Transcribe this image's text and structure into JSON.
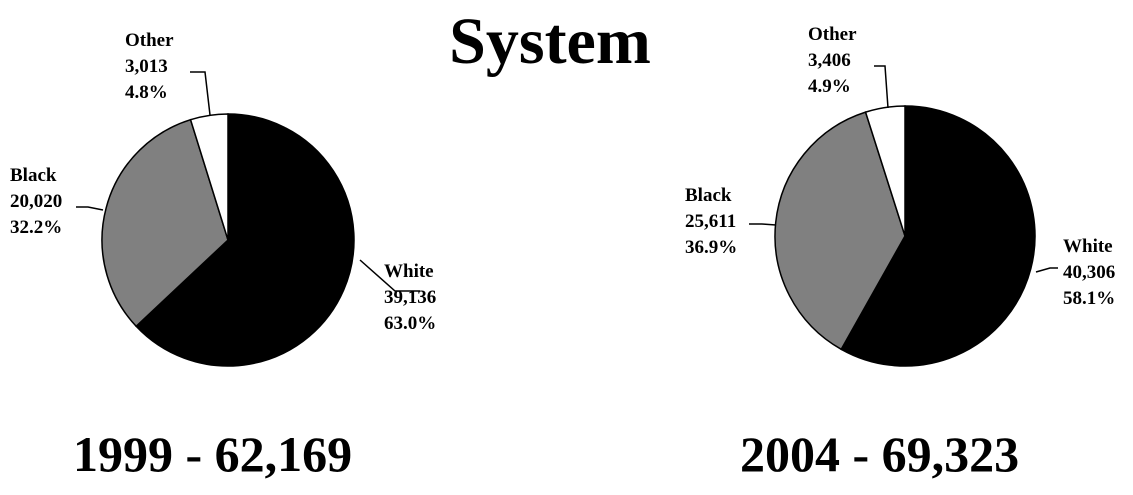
{
  "title": "System",
  "chart_data": [
    {
      "type": "pie",
      "caption": "1999 - 62,169",
      "slices": [
        {
          "label": "White",
          "count": "39,136",
          "percent": "63.0%",
          "value": 63.0,
          "color": "#000000"
        },
        {
          "label": "Black",
          "count": "20,020",
          "percent": "32.2%",
          "value": 32.2,
          "color": "#808080"
        },
        {
          "label": "Other",
          "count": "3,013",
          "percent": "4.8%",
          "value": 4.8,
          "color": "#ffffff"
        }
      ]
    },
    {
      "type": "pie",
      "caption": "2004 - 69,323",
      "slices": [
        {
          "label": "White",
          "count": "40,306",
          "percent": "58.1%",
          "value": 58.1,
          "color": "#000000"
        },
        {
          "label": "Black",
          "count": "25,611",
          "percent": "36.9%",
          "value": 36.9,
          "color": "#808080"
        },
        {
          "label": "Other",
          "count": "3,406",
          "percent": "4.9%",
          "value": 4.9,
          "color": "#ffffff"
        }
      ]
    }
  ]
}
